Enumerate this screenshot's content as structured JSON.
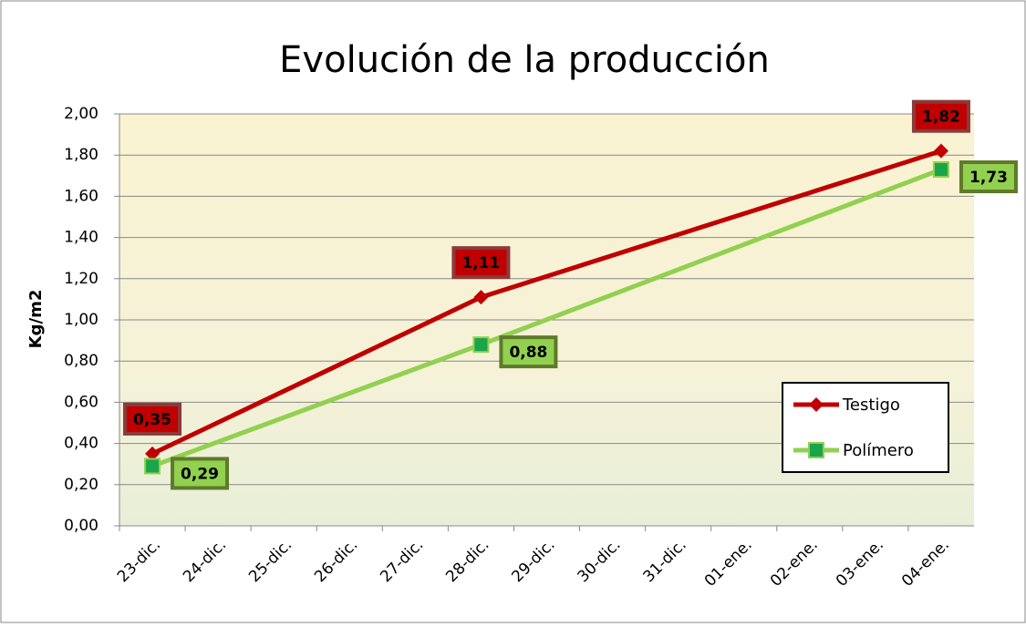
{
  "chart_data": {
    "type": "line",
    "title": "Evolución de la producción",
    "y_label": "Kg/m2",
    "categories": [
      "23-dic.",
      "24-dic.",
      "25-dic.",
      "26-dic.",
      "27-dic.",
      "28-dic.",
      "29-dic.",
      "30-dic.",
      "31-dic.",
      "01-ene.",
      "02-ene.",
      "03-ene.",
      "04-ene."
    ],
    "series": [
      {
        "name": "Testigo",
        "color": "#c00000",
        "marker": "diamond",
        "x": [
          "23-dic.",
          "28-dic.",
          "04-ene."
        ],
        "values": [
          0.35,
          1.11,
          1.82
        ],
        "value_labels": [
          "0,35",
          "1,11",
          "1,82"
        ]
      },
      {
        "name": "Polímero",
        "color": "#92d050",
        "marker": "square",
        "x": [
          "23-dic.",
          "28-dic.",
          "04-ene."
        ],
        "values": [
          0.29,
          0.88,
          1.73
        ],
        "value_labels": [
          "0,29",
          "0,88",
          "1,73"
        ]
      }
    ],
    "ylim": [
      0,
      2
    ],
    "yticks": [
      {
        "value": 0,
        "label": "0,00"
      },
      {
        "value": 0.2,
        "label": "0,20"
      },
      {
        "value": 0.4,
        "label": "0,40"
      },
      {
        "value": 0.6,
        "label": "0,60"
      },
      {
        "value": 0.8,
        "label": "0,80"
      },
      {
        "value": 1,
        "label": "1,00"
      },
      {
        "value": 1.2,
        "label": "1,20"
      },
      {
        "value": 1.4,
        "label": "1,40"
      },
      {
        "value": 1.6,
        "label": "1,60"
      },
      {
        "value": 1.8,
        "label": "1,80"
      },
      {
        "value": 2,
        "label": "2,00"
      }
    ],
    "grid": true,
    "legend": "right"
  }
}
